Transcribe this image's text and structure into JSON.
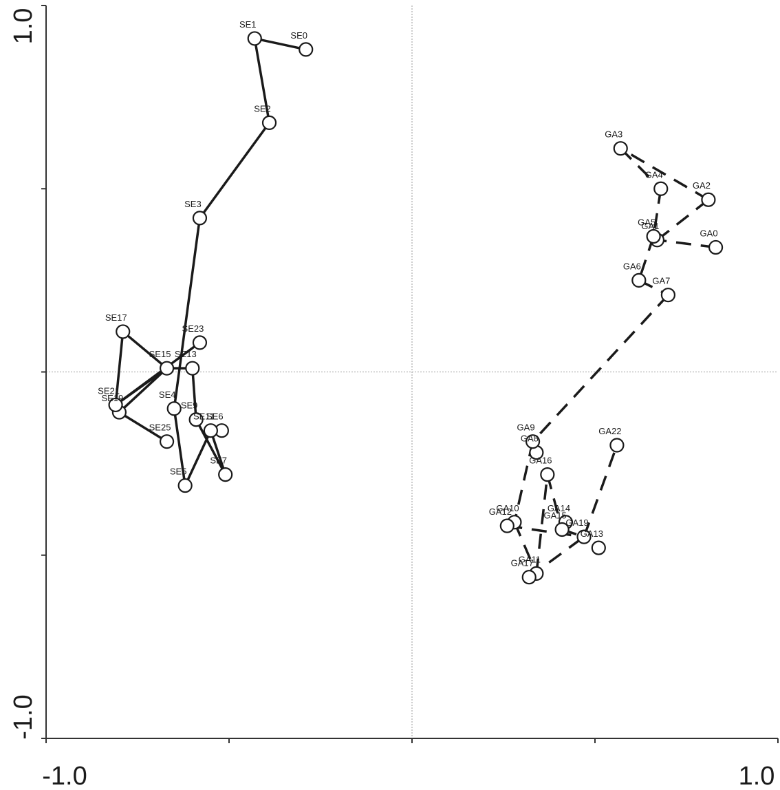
{
  "chart_data": {
    "type": "scatter",
    "title": "",
    "xlabel": "",
    "ylabel": "",
    "xlim": [
      -1.0,
      1.0
    ],
    "ylim": [
      -1.0,
      1.0
    ],
    "x_tick_labels": [
      "-1.0",
      "1.0"
    ],
    "y_tick_labels": [
      "1.0",
      "-1.0"
    ],
    "reference_lines": [
      {
        "axis": "x",
        "value": 0
      },
      {
        "axis": "y",
        "value": 0
      }
    ],
    "grid": false,
    "legend": "none",
    "series": [
      {
        "style": "solid",
        "color": "#1a1a1a",
        "points": [
          {
            "label": "SE0",
            "x": -0.29,
            "y": 0.88
          },
          {
            "label": "SE1",
            "x": -0.43,
            "y": 0.91
          },
          {
            "label": "SE2",
            "x": -0.39,
            "y": 0.68
          },
          {
            "label": "SE3",
            "x": -0.58,
            "y": 0.42
          },
          {
            "label": "SE4",
            "x": -0.65,
            "y": -0.1
          },
          {
            "label": "SE5",
            "x": -0.62,
            "y": -0.31
          },
          {
            "label": "SE6",
            "x": -0.52,
            "y": -0.16
          },
          {
            "label": "SE7",
            "x": -0.51,
            "y": -0.28
          },
          {
            "label": "SE9",
            "x": -0.59,
            "y": -0.13
          },
          {
            "label": "SE11",
            "x": -0.55,
            "y": -0.16
          },
          {
            "label": "SE13",
            "x": -0.6,
            "y": 0.01
          },
          {
            "label": "SE15",
            "x": -0.67,
            "y": 0.01
          },
          {
            "label": "SE17",
            "x": -0.79,
            "y": 0.11
          },
          {
            "label": "SE19",
            "x": -0.8,
            "y": -0.11
          },
          {
            "label": "SE21",
            "x": -0.81,
            "y": -0.09
          },
          {
            "label": "SE23",
            "x": -0.58,
            "y": 0.08
          },
          {
            "label": "SE25",
            "x": -0.67,
            "y": -0.19
          }
        ],
        "path": [
          "SE0",
          "SE1",
          "SE2",
          "SE3",
          "SE4",
          "SE5",
          "SE11",
          "SE7",
          "SE9",
          "SE13",
          "SE15",
          "SE17",
          "SE21",
          "SE23"
        ],
        "extra_segments": [
          [
            "SE21",
            "SE15"
          ],
          [
            "SE19",
            "SE25"
          ],
          [
            "SE19",
            "SE15"
          ]
        ]
      },
      {
        "style": "dashed",
        "color": "#1a1a1a",
        "points": [
          {
            "label": "GA0",
            "x": 0.83,
            "y": 0.34
          },
          {
            "label": "GA1",
            "x": 0.67,
            "y": 0.36
          },
          {
            "label": "GA2",
            "x": 0.81,
            "y": 0.47
          },
          {
            "label": "GA3",
            "x": 0.57,
            "y": 0.61
          },
          {
            "label": "GA4",
            "x": 0.68,
            "y": 0.5
          },
          {
            "label": "GA5",
            "x": 0.66,
            "y": 0.37
          },
          {
            "label": "GA6",
            "x": 0.62,
            "y": 0.25
          },
          {
            "label": "GA7",
            "x": 0.7,
            "y": 0.21
          },
          {
            "label": "GA8",
            "x": 0.34,
            "y": -0.22
          },
          {
            "label": "GA9",
            "x": 0.33,
            "y": -0.19
          },
          {
            "label": "GA10",
            "x": 0.28,
            "y": -0.41
          },
          {
            "label": "GA11",
            "x": 0.34,
            "y": -0.55
          },
          {
            "label": "GA12",
            "x": 0.26,
            "y": -0.42
          },
          {
            "label": "GA13",
            "x": 0.51,
            "y": -0.48
          },
          {
            "label": "GA14",
            "x": 0.42,
            "y": -0.41
          },
          {
            "label": "GA15",
            "x": 0.41,
            "y": -0.43
          },
          {
            "label": "GA16",
            "x": 0.37,
            "y": -0.28
          },
          {
            "label": "GA17",
            "x": 0.32,
            "y": -0.56
          },
          {
            "label": "GA19",
            "x": 0.47,
            "y": -0.45
          },
          {
            "label": "GA22",
            "x": 0.56,
            "y": -0.2
          }
        ],
        "path": [
          "GA0",
          "GA1",
          "GA2",
          "GA3",
          "GA4",
          "GA5",
          "GA6",
          "GA7",
          "GA9",
          "GA10",
          "GA11",
          "GA16",
          "GA15",
          "GA19",
          "GA22"
        ],
        "extra_segments": [
          [
            "GA12",
            "GA19"
          ],
          [
            "GA17",
            "GA19"
          ]
        ]
      }
    ]
  }
}
